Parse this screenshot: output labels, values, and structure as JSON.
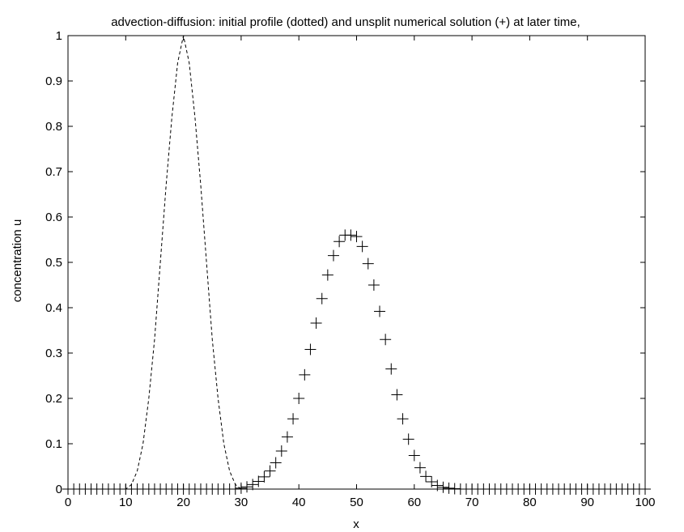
{
  "chart_data": {
    "type": "line",
    "title": "advection-diffusion: initial profile (dotted) and unsplit numerical solution (+) at later time,",
    "xlabel": "x",
    "ylabel": "concentration u",
    "xlim": [
      0,
      100
    ],
    "ylim": [
      0,
      1
    ],
    "xticks": [
      "0",
      "10",
      "20",
      "30",
      "40",
      "50",
      "60",
      "70",
      "80",
      "90",
      "100"
    ],
    "yticks": [
      "0",
      "0.1",
      "0.2",
      "0.3",
      "0.4",
      "0.5",
      "0.6",
      "0.7",
      "0.8",
      "0.9",
      "1"
    ],
    "grid": false,
    "series": [
      {
        "style": "dashed",
        "color": "#000000",
        "x": [
          0,
          1,
          2,
          3,
          4,
          5,
          6,
          7,
          8,
          9,
          10,
          11,
          12,
          13,
          14,
          15,
          16,
          17,
          18,
          19,
          20,
          21,
          22,
          23,
          24,
          25,
          26,
          27,
          28,
          29,
          30,
          31,
          32,
          33,
          34,
          35,
          36,
          37,
          38,
          39,
          40,
          41,
          42,
          43,
          44,
          45,
          46,
          47,
          48,
          49,
          50,
          51,
          52,
          53,
          54,
          55,
          56,
          57,
          58,
          59,
          60,
          61,
          62,
          63,
          64,
          65,
          66,
          67,
          68,
          69,
          70,
          71,
          72,
          73,
          74,
          75,
          76,
          77,
          78,
          79,
          80,
          81,
          82,
          83,
          84,
          85,
          86,
          87,
          88,
          89,
          90,
          91,
          92,
          93,
          94,
          95,
          96,
          97,
          98,
          99,
          100
        ],
        "y": [
          0,
          0,
          0,
          0,
          0,
          0,
          0,
          0,
          0,
          0,
          0,
          0.01,
          0.04,
          0.1,
          0.2,
          0.33,
          0.5,
          0.67,
          0.82,
          0.94,
          1.0,
          0.94,
          0.82,
          0.67,
          0.5,
          0.33,
          0.2,
          0.1,
          0.04,
          0.01,
          0,
          0,
          0,
          0,
          0,
          0,
          0,
          0,
          0,
          0,
          0,
          0,
          0,
          0,
          0,
          0,
          0,
          0,
          0,
          0,
          0,
          0,
          0,
          0,
          0,
          0,
          0,
          0,
          0,
          0,
          0,
          0,
          0,
          0,
          0,
          0,
          0,
          0,
          0,
          0,
          0,
          0,
          0,
          0,
          0,
          0,
          0,
          0,
          0,
          0,
          0,
          0,
          0,
          0,
          0,
          0,
          0,
          0,
          0,
          0,
          0,
          0,
          0,
          0,
          0,
          0,
          0,
          0,
          0,
          0,
          0
        ]
      },
      {
        "style": "plus",
        "color": "#000000",
        "x": [
          0,
          1,
          2,
          3,
          4,
          5,
          6,
          7,
          8,
          9,
          10,
          11,
          12,
          13,
          14,
          15,
          16,
          17,
          18,
          19,
          20,
          21,
          22,
          23,
          24,
          25,
          26,
          27,
          28,
          29,
          30,
          31,
          32,
          33,
          34,
          35,
          36,
          37,
          38,
          39,
          40,
          41,
          42,
          43,
          44,
          45,
          46,
          47,
          48,
          49,
          50,
          51,
          52,
          53,
          54,
          55,
          56,
          57,
          58,
          59,
          60,
          61,
          62,
          63,
          64,
          65,
          66,
          67,
          68,
          69,
          70,
          71,
          72,
          73,
          74,
          75,
          76,
          77,
          78,
          79,
          80,
          81,
          82,
          83,
          84,
          85,
          86,
          87,
          88,
          89,
          90,
          91,
          92,
          93,
          94,
          95,
          96,
          97,
          98,
          99,
          100
        ],
        "y": [
          0,
          0,
          0,
          0,
          0,
          0,
          0,
          0,
          0,
          0,
          0,
          0,
          0,
          0,
          0,
          0,
          0,
          0,
          0,
          0,
          0,
          0,
          0,
          0,
          0,
          0,
          0,
          0,
          0,
          0,
          0.002,
          0.005,
          0.01,
          0.017,
          0.027,
          0.04,
          0.058,
          0.084,
          0.115,
          0.155,
          0.2,
          0.252,
          0.308,
          0.366,
          0.42,
          0.472,
          0.515,
          0.546,
          0.56,
          0.56,
          0.557,
          0.535,
          0.497,
          0.45,
          0.392,
          0.33,
          0.265,
          0.208,
          0.155,
          0.11,
          0.074,
          0.047,
          0.028,
          0.016,
          0.008,
          0.004,
          0.002,
          0.001,
          0,
          0,
          0,
          0,
          0,
          0,
          0,
          0,
          0,
          0,
          0,
          0,
          0,
          0,
          0,
          0,
          0,
          0,
          0,
          0,
          0,
          0,
          0,
          0,
          0,
          0,
          0,
          0,
          0,
          0,
          0,
          0,
          0
        ]
      }
    ]
  }
}
